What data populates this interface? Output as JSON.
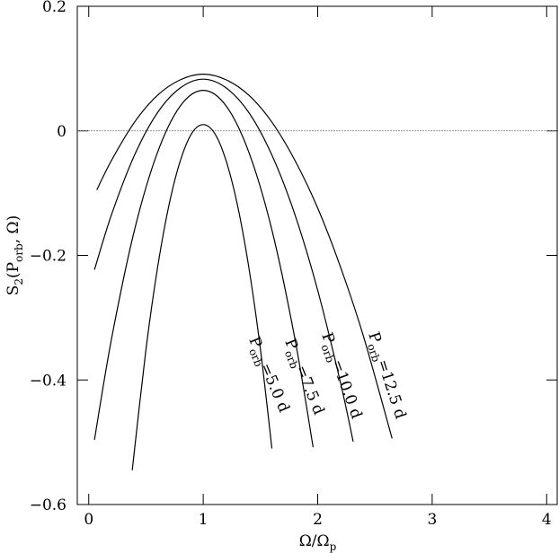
{
  "chart_data": {
    "type": "line",
    "xlabel": "Ω/Ωp",
    "ylabel": "S2(Porb, Ω)",
    "xlim": [
      -0.1,
      4.1
    ],
    "ylim": [
      -0.6,
      0.2
    ],
    "xticks": [
      0,
      1,
      2,
      3,
      4
    ],
    "yticks": [
      0.2,
      0,
      {
        "value": -0.2,
        "label": "−0.2"
      },
      {
        "value": -0.4,
        "label": "−0.4"
      },
      {
        "value": -0.6,
        "label": "−0.6"
      }
    ],
    "hline": 0,
    "color": "#000000",
    "series": [
      {
        "name": "Porb=5.0 d",
        "x": [
          0.38,
          0.5,
          0.6,
          0.7,
          0.8,
          0.9,
          1.0,
          1.1,
          1.2,
          1.3,
          1.4,
          1.5,
          1.6
        ],
        "values": [
          -0.545,
          -0.351,
          -0.221,
          -0.12,
          -0.048,
          -0.004,
          0.01,
          -0.004,
          -0.048,
          -0.12,
          -0.221,
          -0.351,
          -0.51
        ]
      },
      {
        "name": "Porb=7.5 d",
        "x": [
          0.05,
          0.2,
          0.4,
          0.6,
          0.8,
          1.0,
          1.2,
          1.4,
          1.6,
          1.8,
          1.96
        ],
        "values": [
          -0.496,
          -0.333,
          -0.159,
          -0.035,
          0.04,
          0.065,
          0.04,
          -0.035,
          -0.159,
          -0.333,
          -0.508
        ]
      },
      {
        "name": "Porb=10.0 d",
        "x": [
          0.05,
          0.2,
          0.4,
          0.6,
          0.8,
          1.0,
          1.2,
          1.4,
          1.6,
          1.8,
          2.0,
          2.2,
          2.31
        ],
        "values": [
          -0.223,
          -0.134,
          -0.039,
          0.029,
          0.069,
          0.083,
          0.069,
          0.029,
          -0.039,
          -0.134,
          -0.256,
          -0.405,
          -0.499
        ]
      },
      {
        "name": "Porb=12.5 d",
        "x": [
          0.07,
          0.2,
          0.4,
          0.6,
          0.8,
          1.0,
          1.2,
          1.4,
          1.6,
          1.8,
          2.0,
          2.2,
          2.4,
          2.65
        ],
        "values": [
          -0.095,
          -0.047,
          0.014,
          0.057,
          0.082,
          0.091,
          0.082,
          0.057,
          0.014,
          -0.047,
          -0.124,
          -0.219,
          -0.33,
          -0.494
        ]
      }
    ]
  }
}
